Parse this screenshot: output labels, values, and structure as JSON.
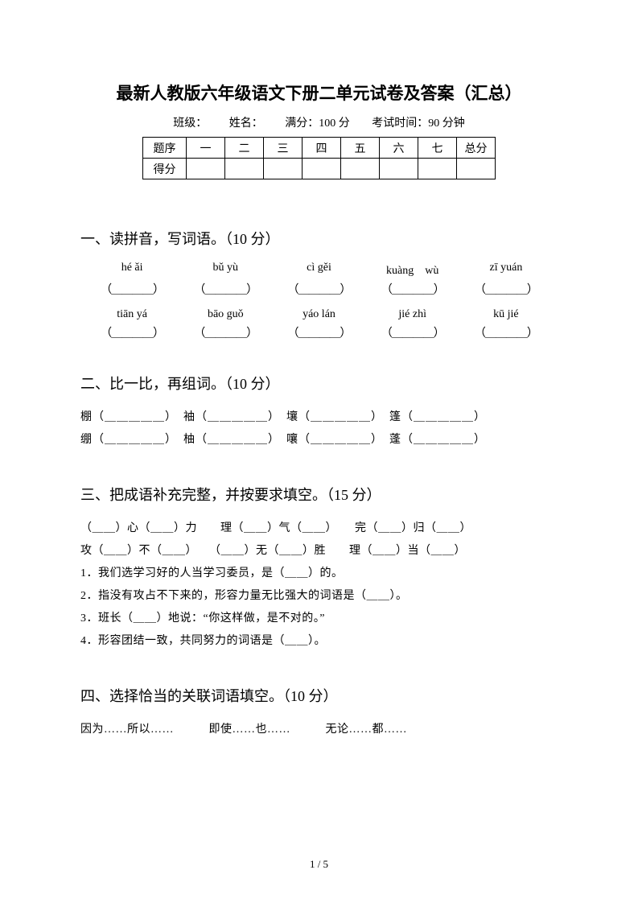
{
  "title": "最新人教版六年级语文下册二单元试卷及答案（汇总）",
  "meta": {
    "class_label": "班级：",
    "name_label": "姓名：",
    "full_score_label": "满分：100 分",
    "time_label": "考试时间：90 分钟"
  },
  "score_table": {
    "row1": [
      "题序",
      "一",
      "二",
      "三",
      "四",
      "五",
      "六",
      "七",
      "总分"
    ],
    "row2_label": "得分"
  },
  "section1": {
    "title": "一、读拼音，写词语。（10 分）",
    "pinyin_row1": [
      "hé ǎi",
      "bǔ yù",
      "cì gěi",
      "kuàng　wù",
      "zī yuán"
    ],
    "pinyin_row2": [
      "tiān yá",
      "bāo guǒ",
      "yáo lán",
      "jié zhì",
      "kū jié"
    ],
    "blank": "（＿＿＿＿）"
  },
  "section2": {
    "title": "二、比一比，再组词。（10 分）",
    "line1": "棚（＿＿＿＿＿）　袖（＿＿＿＿＿）　壤（＿＿＿＿＿）　篷（＿＿＿＿＿）",
    "line2": "绷（＿＿＿＿＿）　柚（＿＿＿＿＿）　嚷（＿＿＿＿＿）　蓬（＿＿＿＿＿）"
  },
  "section3": {
    "title": "三、把成语补充完整，并按要求填空。（15 分）",
    "line1": "（＿＿）心（＿＿）力　　理（＿＿）气（＿＿）　　完（＿＿）归（＿＿）",
    "line2": "攻（＿＿）不（＿＿）　　（＿＿）无（＿＿）胜　　理（＿＿）当（＿＿）",
    "item1": "1．我们选学习好的人当学习委员，是（＿＿）的。",
    "item2": "2．指没有攻占不下来的，形容力量无比强大的词语是（＿＿）。",
    "item3": "3．班长（＿＿）地说：“你这样做，是不对的。”",
    "item4": "4．形容团结一致，共同努力的词语是（＿＿）。"
  },
  "section4": {
    "title": "四、选择恰当的关联词语填空。（10 分）",
    "line1": "因为……所以……　　　即使……也……　　　无论……都……"
  },
  "page_num": "1 / 5",
  "colors": {
    "bg": "#ffffff",
    "text": "#000000",
    "border": "#000000"
  }
}
